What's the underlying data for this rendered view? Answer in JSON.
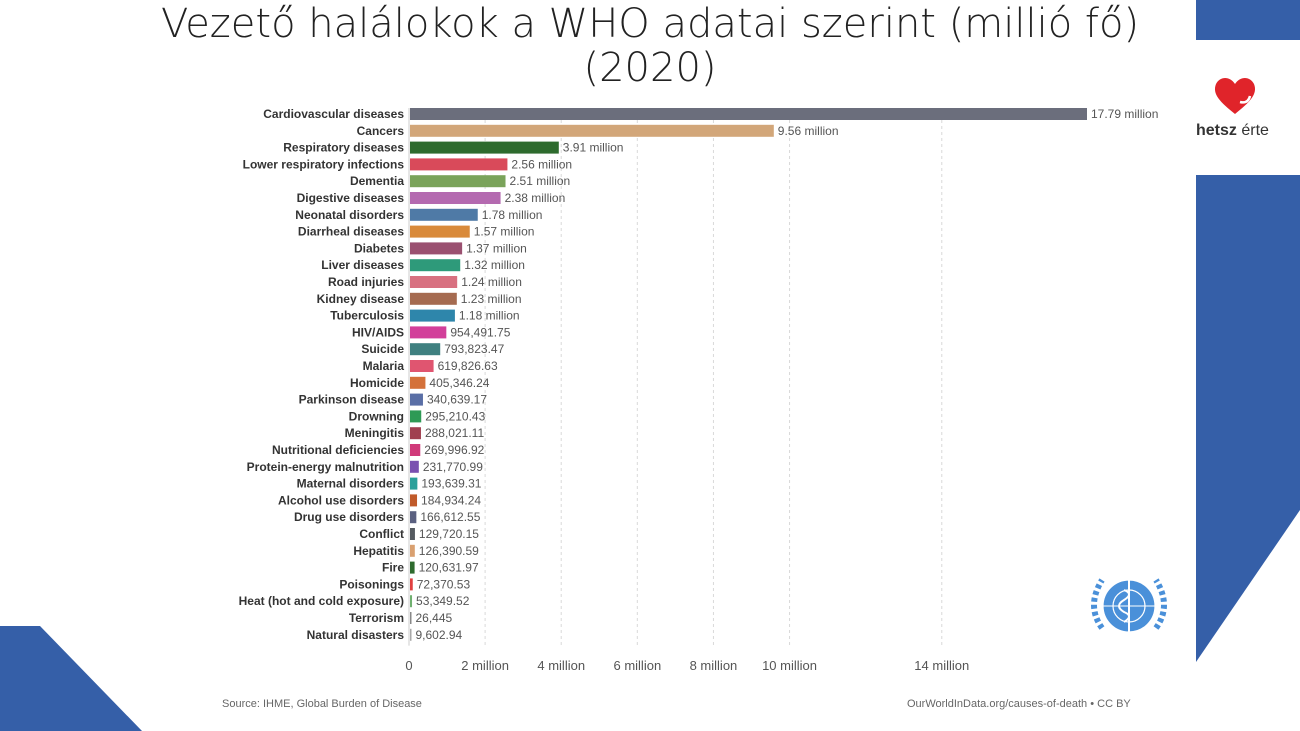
{
  "title_line1": "Vezető halálokok a WHO adatai szerint (millió fő)",
  "title_line2": "(2020)",
  "logo_text": "hetsz",
  "logo_text2": "érte",
  "colors": {
    "accent_blue": "#355fa8",
    "logo_red": "#e0242a",
    "who_blue": "#4a90d9"
  },
  "icons": [
    "heart-logo-icon",
    "who-emblem-icon"
  ],
  "source_left": "Source: IHME, Global Burden of Disease",
  "source_right": "OurWorldInData.org/causes-of-death • CC BY",
  "chart_data": {
    "type": "bar",
    "orientation": "horizontal",
    "categories": [
      "Cardiovascular diseases",
      "Cancers",
      "Respiratory diseases",
      "Lower respiratory infections",
      "Dementia",
      "Digestive diseases",
      "Neonatal disorders",
      "Diarrheal diseases",
      "Diabetes",
      "Liver diseases",
      "Road injuries",
      "Kidney disease",
      "Tuberculosis",
      "HIV/AIDS",
      "Suicide",
      "Malaria",
      "Homicide",
      "Parkinson disease",
      "Drowning",
      "Meningitis",
      "Nutritional deficiencies",
      "Protein-energy malnutrition",
      "Maternal disorders",
      "Alcohol use disorders",
      "Drug use disorders",
      "Conflict",
      "Hepatitis",
      "Fire",
      "Poisonings",
      "Heat (hot and cold exposure)",
      "Terrorism",
      "Natural disasters"
    ],
    "values": [
      17790000,
      9560000,
      3910000,
      2560000,
      2510000,
      2380000,
      1780000,
      1570000,
      1370000,
      1320000,
      1240000,
      1230000,
      1180000,
      954491.75,
      793823.47,
      619826.63,
      405346.24,
      340639.17,
      295210.43,
      288021.11,
      269996.92,
      231770.99,
      193639.31,
      184934.24,
      166612.55,
      129720.15,
      126390.59,
      120631.97,
      72370.53,
      53349.52,
      26445,
      9602.94
    ],
    "value_labels": [
      "17.79 million",
      "9.56 million",
      "3.91 million",
      "2.56 million",
      "2.51 million",
      "2.38 million",
      "1.78 million",
      "1.57 million",
      "1.37 million",
      "1.32 million",
      "1.24 million",
      "1.23 million",
      "1.18 million",
      "954,491.75",
      "793,823.47",
      "619,826.63",
      "405,346.24",
      "340,639.17",
      "295,210.43",
      "288,021.11",
      "269,996.92",
      "231,770.99",
      "193,639.31",
      "184,934.24",
      "166,612.55",
      "129,720.15",
      "126,390.59",
      "120,631.97",
      "72,370.53",
      "53,349.52",
      "26,445",
      "9,602.94"
    ],
    "bar_colors": [
      "#6b6e7c",
      "#d2a679",
      "#2e6b2e",
      "#d94a5a",
      "#7aa35a",
      "#b46ab0",
      "#4f7aa6",
      "#d98a3a",
      "#9a5070",
      "#2e9a7a",
      "#d87080",
      "#a56b50",
      "#2e86ab",
      "#d23f9a",
      "#3f8080",
      "#e05570",
      "#d4713a",
      "#5a6fa6",
      "#2e9a55",
      "#a04050",
      "#d03a7a",
      "#7a50b0",
      "#2aa09a",
      "#c05a2a",
      "#5a6080",
      "#555a60",
      "#d9a070",
      "#2e6b2e",
      "#e04040",
      "#70b070",
      "#888888",
      "#aaaaaa"
    ],
    "x_ticks": [
      0,
      2000000,
      4000000,
      6000000,
      8000000,
      10000000,
      14000000
    ],
    "x_tick_labels": [
      "0",
      "2 million",
      "4 million",
      "6 million",
      "8 million",
      "10 million",
      "14 million"
    ],
    "xlim": [
      0,
      17790000
    ],
    "grid": "vertical dashed"
  }
}
